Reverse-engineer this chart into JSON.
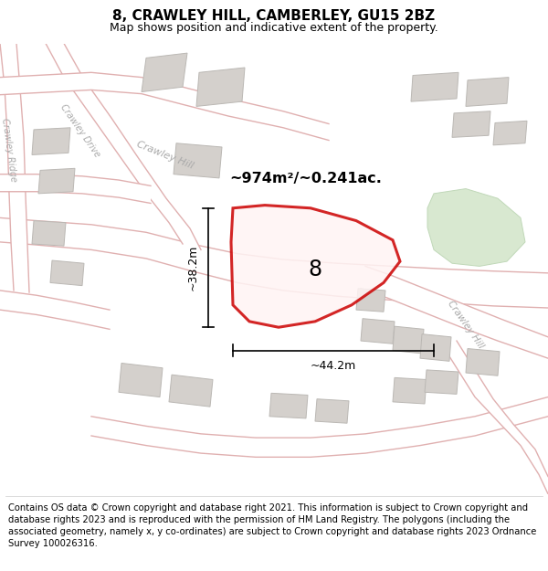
{
  "title": "8, CRAWLEY HILL, CAMBERLEY, GU15 2BZ",
  "subtitle": "Map shows position and indicative extent of the property.",
  "footer": "Contains OS data © Crown copyright and database right 2021. This information is subject to Crown copyright and database rights 2023 and is reproduced with the permission of HM Land Registry. The polygons (including the associated geometry, namely x, y co-ordinates) are subject to Crown copyright and database rights 2023 Ordnance Survey 100026316.",
  "map_bg": "#f2f0ed",
  "road_fill": "#ffffff",
  "road_edge": "#e8b8b8",
  "building_fill": "#d4d0cc",
  "building_edge": "#c0bcb8",
  "green_fill": "#d8e8d0",
  "green_edge": "#c0d8b8",
  "plot_color": "#cc0000",
  "plot_lw": 2.2,
  "dim_color": "#000000",
  "area_text": "~974m²/~0.241ac.",
  "width_label": "~44.2m",
  "height_label": "~38.2m",
  "plot_label": "8",
  "title_fontsize": 11,
  "subtitle_fontsize": 9,
  "footer_fontsize": 7.2,
  "road_label_color": "#aaaaaa",
  "road_label_size": 8
}
